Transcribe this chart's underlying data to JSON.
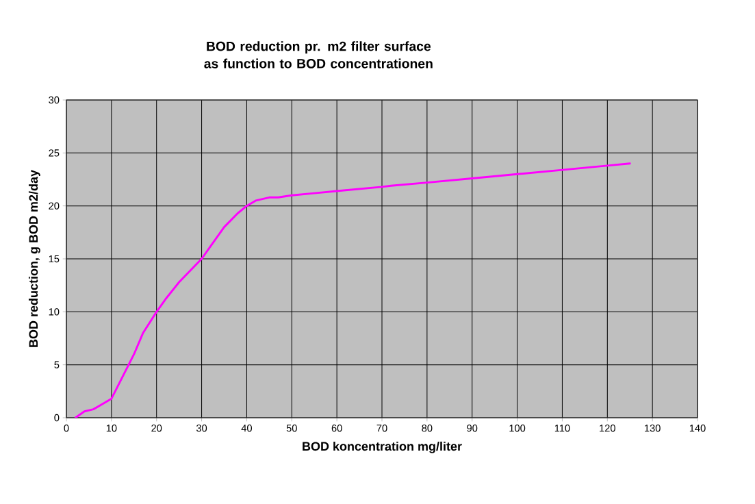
{
  "chart_data": {
    "type": "line",
    "title": "BOD reduction pr. m2 filter surface as function to BOD concentrationen",
    "xlabel": "BOD koncentration mg/liter",
    "ylabel": "BOD reduction, g  BOD m2/day",
    "series": [
      {
        "color": "#ff00ff",
        "x": [
          2,
          4,
          6,
          8,
          10,
          15,
          17,
          20,
          22,
          25,
          30,
          32,
          35,
          38,
          40,
          42,
          45,
          47,
          50,
          55,
          60,
          70,
          72,
          80,
          90,
          100,
          110,
          120,
          125
        ],
        "values": [
          0,
          0.6,
          0.8,
          1.3,
          1.8,
          6,
          8,
          10,
          11.2,
          12.8,
          15,
          16.2,
          18,
          19.3,
          20,
          20.5,
          20.8,
          20.8,
          21,
          21.2,
          21.4,
          21.8,
          21.9,
          22.2,
          22.6,
          23,
          23.4,
          23.8,
          24
        ]
      }
    ],
    "xlim": [
      0,
      140
    ],
    "xticks": [
      0,
      10,
      20,
      30,
      40,
      50,
      60,
      70,
      80,
      90,
      100,
      110,
      120,
      130,
      140
    ],
    "ylim": [
      0,
      30
    ],
    "yticks": [
      0,
      5,
      10,
      15,
      20,
      25,
      30
    ],
    "grid": true,
    "marker": "none",
    "line_style": "solid"
  }
}
